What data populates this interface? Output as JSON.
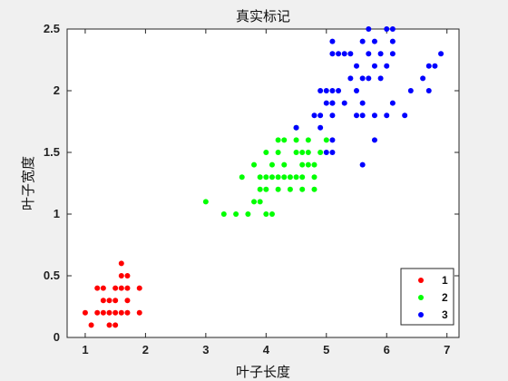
{
  "chart_data": {
    "type": "scatter",
    "title": "真实标记",
    "xlabel": "叶子长度",
    "ylabel": "叶子宽度",
    "xlim": [
      0.7,
      7.2
    ],
    "ylim": [
      0,
      2.5
    ],
    "xticks": [
      "1",
      "2",
      "3",
      "4",
      "5",
      "6",
      "7"
    ],
    "yticks": [
      "0",
      "0.5",
      "1",
      "1.5",
      "2",
      "2.5"
    ],
    "legend_position": "bottom-right",
    "series": [
      {
        "name": "1",
        "color": "#ff0000",
        "points": [
          [
            1.0,
            0.2
          ],
          [
            1.1,
            0.1
          ],
          [
            1.2,
            0.2
          ],
          [
            1.3,
            0.2
          ],
          [
            1.4,
            0.2
          ],
          [
            1.5,
            0.2
          ],
          [
            1.6,
            0.2
          ],
          [
            1.7,
            0.2
          ],
          [
            1.9,
            0.2
          ],
          [
            1.3,
            0.3
          ],
          [
            1.4,
            0.3
          ],
          [
            1.5,
            0.3
          ],
          [
            1.7,
            0.3
          ],
          [
            1.3,
            0.4
          ],
          [
            1.5,
            0.4
          ],
          [
            1.6,
            0.4
          ],
          [
            1.7,
            0.4
          ],
          [
            1.9,
            0.4
          ],
          [
            1.4,
            0.1
          ],
          [
            1.5,
            0.1
          ],
          [
            1.6,
            0.5
          ],
          [
            1.7,
            0.5
          ],
          [
            1.6,
            0.6
          ],
          [
            1.2,
            0.4
          ]
        ]
      },
      {
        "name": "2",
        "color": "#00ff00",
        "points": [
          [
            3.0,
            1.1
          ],
          [
            3.3,
            1.0
          ],
          [
            3.5,
            1.0
          ],
          [
            3.7,
            1.0
          ],
          [
            4.0,
            1.0
          ],
          [
            4.1,
            1.0
          ],
          [
            3.8,
            1.1
          ],
          [
            3.9,
            1.1
          ],
          [
            3.9,
            1.2
          ],
          [
            4.0,
            1.2
          ],
          [
            4.2,
            1.2
          ],
          [
            4.4,
            1.2
          ],
          [
            4.6,
            1.2
          ],
          [
            4.8,
            1.2
          ],
          [
            3.6,
            1.3
          ],
          [
            3.9,
            1.3
          ],
          [
            4.0,
            1.3
          ],
          [
            4.1,
            1.3
          ],
          [
            4.2,
            1.3
          ],
          [
            4.3,
            1.3
          ],
          [
            4.4,
            1.3
          ],
          [
            4.5,
            1.3
          ],
          [
            4.6,
            1.3
          ],
          [
            4.8,
            1.3
          ],
          [
            3.8,
            1.4
          ],
          [
            4.1,
            1.4
          ],
          [
            4.3,
            1.4
          ],
          [
            4.6,
            1.4
          ],
          [
            4.7,
            1.4
          ],
          [
            4.8,
            1.4
          ],
          [
            4.0,
            1.5
          ],
          [
            4.2,
            1.5
          ],
          [
            4.5,
            1.5
          ],
          [
            4.6,
            1.5
          ],
          [
            4.7,
            1.5
          ],
          [
            4.9,
            1.5
          ],
          [
            4.2,
            1.6
          ],
          [
            4.5,
            1.6
          ],
          [
            4.7,
            1.6
          ],
          [
            5.0,
            1.6
          ],
          [
            4.5,
            1.7
          ],
          [
            4.3,
            1.6
          ]
        ]
      },
      {
        "name": "3",
        "color": "#0000ff",
        "points": [
          [
            4.5,
            1.7
          ],
          [
            4.8,
            1.8
          ],
          [
            4.9,
            1.8
          ],
          [
            5.1,
            1.8
          ],
          [
            5.5,
            1.8
          ],
          [
            5.6,
            1.8
          ],
          [
            5.8,
            1.8
          ],
          [
            6.0,
            1.8
          ],
          [
            6.3,
            1.8
          ],
          [
            5.0,
            1.5
          ],
          [
            5.1,
            1.5
          ],
          [
            5.6,
            1.4
          ],
          [
            5.8,
            1.6
          ],
          [
            5.1,
            1.6
          ],
          [
            4.9,
            1.7
          ],
          [
            5.1,
            1.9
          ],
          [
            5.3,
            1.9
          ],
          [
            4.9,
            2.0
          ],
          [
            5.0,
            2.0
          ],
          [
            5.1,
            2.0
          ],
          [
            5.2,
            2.0
          ],
          [
            5.5,
            2.0
          ],
          [
            6.4,
            2.0
          ],
          [
            6.7,
            2.0
          ],
          [
            5.0,
            1.9
          ],
          [
            5.1,
            1.9
          ],
          [
            5.6,
            1.9
          ],
          [
            6.1,
            1.9
          ],
          [
            5.4,
            2.1
          ],
          [
            5.6,
            2.1
          ],
          [
            5.7,
            2.1
          ],
          [
            5.9,
            2.1
          ],
          [
            6.6,
            2.1
          ],
          [
            5.1,
            2.3
          ],
          [
            5.2,
            2.3
          ],
          [
            5.3,
            2.3
          ],
          [
            5.4,
            2.3
          ],
          [
            5.7,
            2.3
          ],
          [
            5.9,
            2.3
          ],
          [
            6.1,
            2.3
          ],
          [
            6.9,
            2.3
          ],
          [
            5.1,
            2.4
          ],
          [
            5.6,
            2.4
          ],
          [
            5.8,
            2.2
          ],
          [
            6.1,
            2.4
          ],
          [
            6.7,
            2.2
          ],
          [
            6.8,
            2.2
          ],
          [
            5.5,
            2.2
          ],
          [
            6.0,
            2.2
          ],
          [
            5.7,
            2.5
          ],
          [
            6.0,
            2.5
          ],
          [
            6.1,
            2.5
          ],
          [
            5.8,
            2.4
          ]
        ]
      }
    ]
  }
}
